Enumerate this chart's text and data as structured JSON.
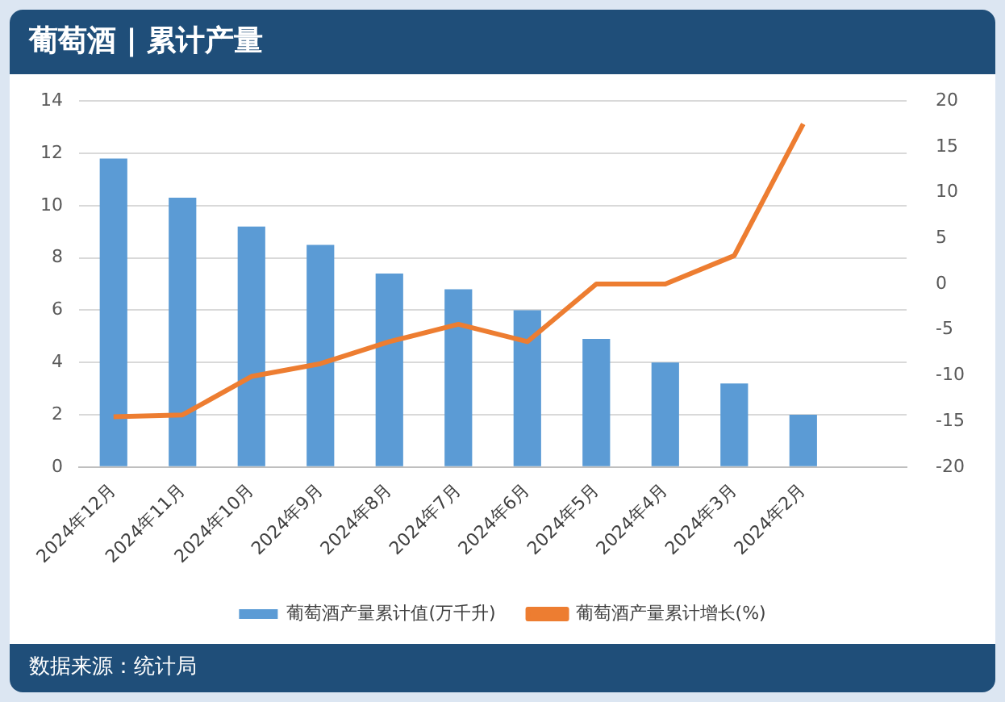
{
  "chart_data": {
    "type": "bar",
    "title": "葡萄酒 | 累计产量",
    "categories": [
      "2024年12月",
      "2024年11月",
      "2024年10月",
      "2024年9月",
      "2024年8月",
      "2024年7月",
      "2024年6月",
      "2024年5月",
      "2024年4月",
      "2024年3月",
      "2024年2月",
      null
    ],
    "series": [
      {
        "name": "葡萄酒产量累计值(万千升)",
        "color": "#5b9bd5",
        "values": [
          11.8,
          10.3,
          9.2,
          8.5,
          7.4,
          6.8,
          6.0,
          4.9,
          4.0,
          3.2,
          2.0,
          null
        ]
      },
      {
        "name": "葡萄酒产量累计增长(%)",
        "type": "line",
        "axis": "y2",
        "color": "#ed7d31",
        "marker": "none",
        "values": [
          -14.5,
          -14.3,
          -10.1,
          -8.7,
          -6.3,
          -4.4,
          -6.3,
          0,
          0,
          3.1,
          17.5,
          null
        ]
      }
    ],
    "ylim": [
      0,
      14
    ],
    "yticks": [
      0,
      2,
      4,
      6,
      8,
      10,
      12,
      14
    ],
    "y2lim": [
      -20,
      20
    ],
    "y2ticks": [
      -20,
      -15,
      -10,
      -5,
      0,
      5,
      10,
      15,
      20
    ],
    "grid": "y",
    "legend": "bottom",
    "annotations": [
      "数据来源：统计局"
    ]
  }
}
